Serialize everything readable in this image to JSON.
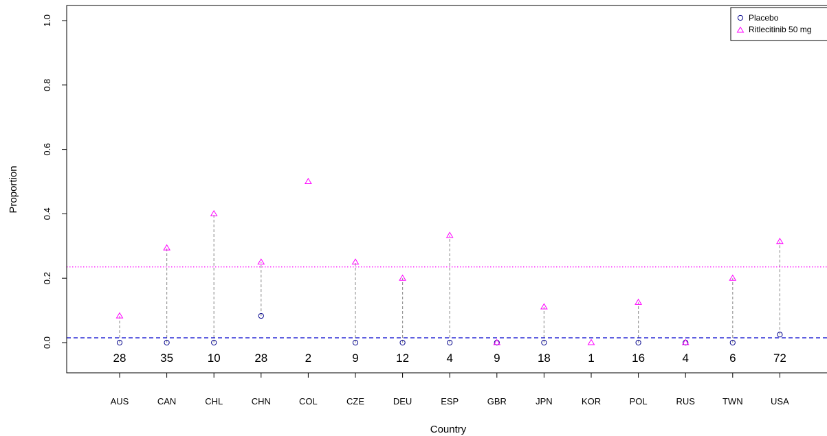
{
  "chart_data": {
    "type": "scatter",
    "xlabel": "Country",
    "ylabel": "Proportion",
    "ylim": [
      0.0,
      1.0
    ],
    "yticks": [
      "0.0",
      "0.2",
      "0.4",
      "0.6",
      "0.8",
      "1.0"
    ],
    "categories": [
      "AUS",
      "CAN",
      "CHL",
      "CHN",
      "COL",
      "CZE",
      "DEU",
      "ESP",
      "GBR",
      "JPN",
      "KOR",
      "POL",
      "RUS",
      "TWN",
      "USA"
    ],
    "counts": [
      "28",
      "35",
      "10",
      "28",
      "2",
      "9",
      "12",
      "4",
      "9",
      "18",
      "1",
      "16",
      "4",
      "6",
      "72"
    ],
    "series": [
      {
        "name": "Placebo",
        "marker": "circle",
        "color": "#00008b",
        "values": [
          0.0,
          0.0,
          0.0,
          0.083,
          null,
          0.0,
          0.0,
          0.0,
          0.0,
          0.0,
          null,
          0.0,
          0.0,
          0.0,
          0.025
        ],
        "overall": 0.015,
        "overall_line_color": "#0000cd"
      },
      {
        "name": "Ritlecitinib 50 mg",
        "marker": "triangle",
        "color": "#ff00ff",
        "values": [
          0.083,
          0.294,
          0.4,
          0.25,
          0.5,
          0.25,
          0.2,
          0.333,
          0.0,
          0.111,
          0.0,
          0.125,
          0.0,
          0.2,
          0.314
        ],
        "overall": 0.235,
        "overall_line_color": "#ff00ff"
      }
    ],
    "connector_color": "#999999",
    "legend_position": "top-right",
    "grid": false
  }
}
